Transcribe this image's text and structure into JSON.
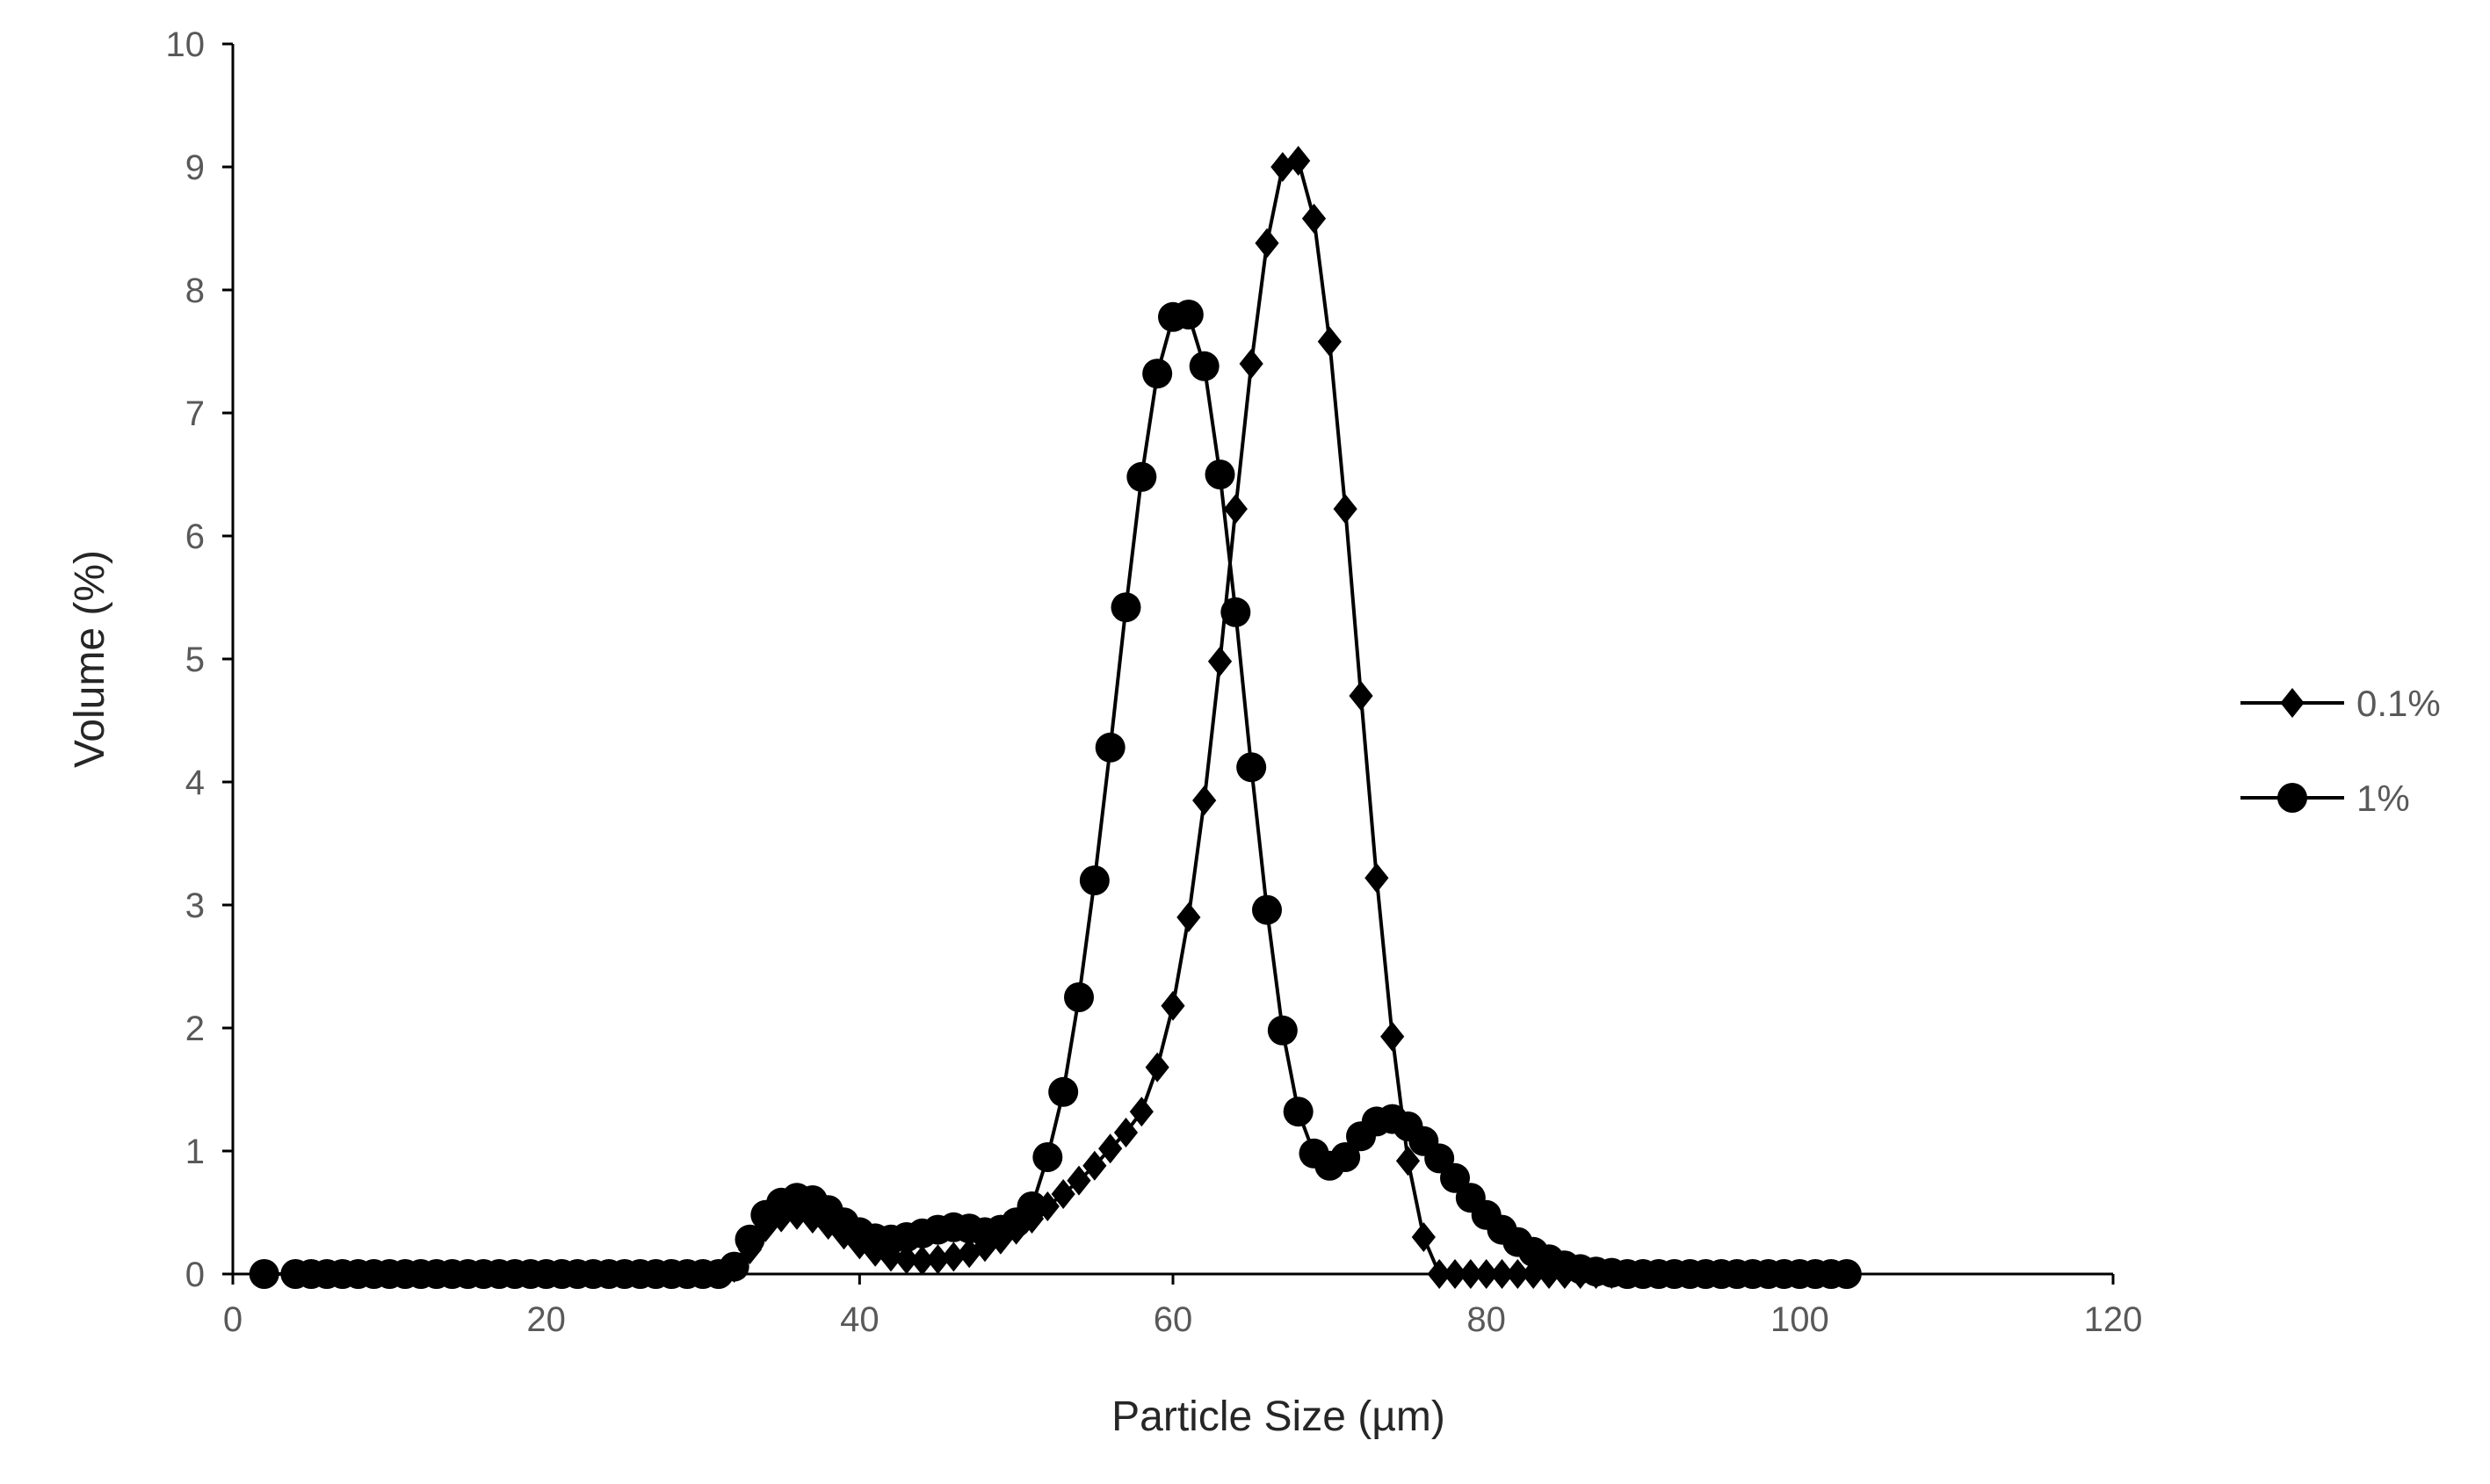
{
  "chart_data": {
    "type": "line",
    "xlabel": "Particle Size (µm)",
    "ylabel": "Volume (%)",
    "xlim": [
      0,
      120
    ],
    "ylim": [
      0,
      10
    ],
    "xticks": [
      "0",
      "20",
      "40",
      "60",
      "80",
      "100",
      "120"
    ],
    "yticks": [
      "0",
      "1",
      "2",
      "3",
      "4",
      "5",
      "6",
      "7",
      "8",
      "9",
      "10"
    ],
    "grid": false,
    "legend_position": "right",
    "series": [
      {
        "name": "0.1%",
        "marker": "diamond",
        "color": "#000000",
        "x": [
          2,
          4,
          5,
          6,
          7,
          8,
          9,
          10,
          11,
          12,
          13,
          14,
          15,
          16,
          17,
          18,
          19,
          20,
          21,
          22,
          23,
          24,
          25,
          26,
          27,
          28,
          29,
          30,
          31,
          32,
          33,
          34,
          35,
          36,
          37,
          38,
          39,
          40,
          41,
          42,
          43,
          44,
          45,
          46,
          47,
          48,
          49,
          50,
          51,
          52,
          53,
          54,
          55,
          56,
          57,
          58,
          59,
          60,
          61,
          62,
          63,
          64,
          65,
          66,
          67,
          68,
          69,
          70,
          71,
          72,
          73,
          74,
          75,
          76,
          77,
          78,
          79,
          80,
          81,
          82,
          83,
          84,
          85,
          86,
          87,
          88,
          89,
          90,
          91,
          92,
          93,
          94,
          95,
          96,
          97,
          98,
          99,
          100,
          101,
          102,
          103
        ],
        "y": [
          0,
          0,
          0,
          0,
          0,
          0,
          0,
          0,
          0,
          0,
          0,
          0,
          0,
          0,
          0,
          0,
          0,
          0,
          0,
          0,
          0,
          0,
          0,
          0,
          0,
          0,
          0,
          0,
          0,
          0.05,
          0.2,
          0.38,
          0.46,
          0.48,
          0.45,
          0.4,
          0.32,
          0.24,
          0.18,
          0.14,
          0.12,
          0.11,
          0.12,
          0.14,
          0.17,
          0.22,
          0.28,
          0.36,
          0.45,
          0.55,
          0.65,
          0.76,
          0.88,
          1.02,
          1.15,
          1.32,
          1.68,
          2.18,
          2.9,
          3.85,
          4.98,
          6.22,
          7.4,
          8.38,
          9.0,
          9.05,
          8.58,
          7.58,
          6.22,
          4.7,
          3.22,
          1.93,
          0.92,
          0.3,
          0,
          0,
          0,
          0,
          0,
          0,
          0,
          0,
          0,
          0,
          0,
          0,
          0,
          0,
          0,
          0,
          0,
          0,
          0,
          0,
          0,
          0,
          0,
          0,
          0,
          0,
          0
        ]
      },
      {
        "name": "1%",
        "marker": "circle",
        "color": "#000000",
        "x": [
          2,
          4,
          5,
          6,
          7,
          8,
          9,
          10,
          11,
          12,
          13,
          14,
          15,
          16,
          17,
          18,
          19,
          20,
          21,
          22,
          23,
          24,
          25,
          26,
          27,
          28,
          29,
          30,
          31,
          32,
          33,
          34,
          35,
          36,
          37,
          38,
          39,
          40,
          41,
          42,
          43,
          44,
          45,
          46,
          47,
          48,
          49,
          50,
          51,
          52,
          53,
          54,
          55,
          56,
          57,
          58,
          59,
          60,
          61,
          62,
          63,
          64,
          65,
          66,
          67,
          68,
          69,
          70,
          71,
          72,
          73,
          74,
          75,
          76,
          77,
          78,
          79,
          80,
          81,
          82,
          83,
          84,
          85,
          86,
          87,
          88,
          89,
          90,
          91,
          92,
          93,
          94,
          95,
          96,
          97,
          98,
          99,
          100,
          101,
          102,
          103
        ],
        "y": [
          0,
          0,
          0,
          0,
          0,
          0,
          0,
          0,
          0,
          0,
          0,
          0,
          0,
          0,
          0,
          0,
          0,
          0,
          0,
          0,
          0,
          0,
          0,
          0,
          0,
          0,
          0,
          0,
          0,
          0.06,
          0.28,
          0.48,
          0.58,
          0.62,
          0.6,
          0.52,
          0.42,
          0.34,
          0.29,
          0.28,
          0.3,
          0.33,
          0.36,
          0.38,
          0.37,
          0.34,
          0.36,
          0.42,
          0.55,
          0.95,
          1.48,
          2.25,
          3.2,
          4.28,
          5.42,
          6.48,
          7.32,
          7.78,
          7.8,
          7.38,
          6.5,
          5.38,
          4.12,
          2.96,
          1.98,
          1.32,
          0.98,
          0.88,
          0.95,
          1.12,
          1.24,
          1.26,
          1.2,
          1.08,
          0.94,
          0.78,
          0.62,
          0.48,
          0.36,
          0.26,
          0.18,
          0.12,
          0.07,
          0.04,
          0.02,
          0.01,
          0,
          0,
          0,
          0,
          0,
          0,
          0,
          0,
          0,
          0,
          0,
          0,
          0,
          0,
          0
        ]
      }
    ]
  }
}
